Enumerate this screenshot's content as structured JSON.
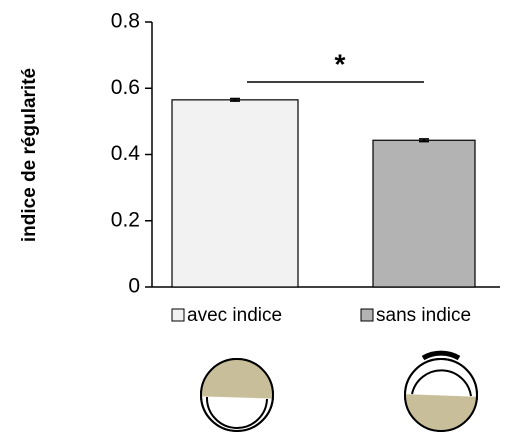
{
  "chart_data": {
    "type": "bar",
    "y_label": "indice de régularité",
    "categories": [
      "avec indice",
      "sans indice"
    ],
    "values": [
      0.565,
      0.443
    ],
    "errors": [
      0.004,
      0.004
    ],
    "colors": [
      "#f2f2f2",
      "#b3b3b3"
    ],
    "ylim": [
      0,
      0.8
    ],
    "yticks": [
      0,
      0.2,
      0.4,
      0.6,
      0.8
    ],
    "annotation": "*"
  }
}
